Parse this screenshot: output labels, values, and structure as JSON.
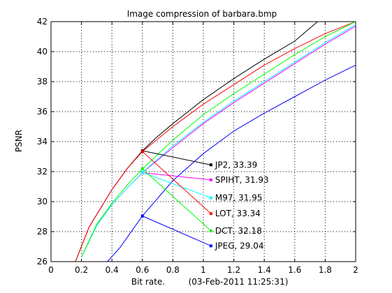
{
  "chart_data": {
    "type": "line",
    "title": "Image compression of barbara.bmp",
    "xlabel": "Bit rate.",
    "xlabel_note": "(03-Feb-2011 11:25:31)",
    "ylabel": "PSNR",
    "xlim": [
      0,
      2
    ],
    "ylim": [
      26,
      42
    ],
    "xticks": [
      0,
      0.2,
      0.4,
      0.6,
      0.8,
      1,
      1.2,
      1.4,
      1.6,
      1.8,
      2
    ],
    "xtick_labels": [
      "0",
      "0.2",
      "0.4",
      "0.6",
      "0.8",
      "1",
      "1.2",
      "1.4",
      "1.6",
      "1.8",
      "2"
    ],
    "yticks": [
      26,
      28,
      30,
      32,
      34,
      36,
      38,
      40,
      42
    ],
    "ytick_labels": [
      "26",
      "28",
      "30",
      "32",
      "34",
      "36",
      "38",
      "40",
      "42"
    ],
    "grid": true,
    "series": [
      {
        "name": "JP2",
        "color": "#000000",
        "x": [
          0.16,
          0.25,
          0.4,
          0.5,
          0.6,
          0.7,
          0.8,
          1.0,
          1.2,
          1.4,
          1.6,
          1.75
        ],
        "y": [
          26,
          28.3,
          30.8,
          32.2,
          33.39,
          34.35,
          35.2,
          36.8,
          38.2,
          39.5,
          40.7,
          42
        ]
      },
      {
        "name": "SPIHT",
        "color": "#ff00ff",
        "x": [
          0.2,
          0.3,
          0.4,
          0.5,
          0.6,
          0.8,
          1.0,
          1.2,
          1.4,
          1.6,
          1.8,
          2.0
        ],
        "y": [
          26.3,
          28.4,
          29.8,
          30.9,
          31.93,
          33.6,
          35.2,
          36.6,
          37.9,
          39.2,
          40.5,
          41.7
        ]
      },
      {
        "name": "M97",
        "color": "#00ffff",
        "x": [
          0.2,
          0.3,
          0.4,
          0.5,
          0.6,
          0.8,
          1.0,
          1.2,
          1.4,
          1.6,
          1.8,
          2.0
        ],
        "y": [
          26.3,
          28.4,
          29.8,
          30.9,
          31.95,
          33.7,
          35.3,
          36.7,
          38.0,
          39.3,
          40.6,
          41.8
        ]
      },
      {
        "name": "LOT",
        "color": "#ff0000",
        "x": [
          0.16,
          0.25,
          0.4,
          0.5,
          0.6,
          0.8,
          1.0,
          1.2,
          1.4,
          1.6,
          1.8,
          2.0
        ],
        "y": [
          26,
          28.3,
          30.8,
          32.2,
          33.34,
          35.0,
          36.5,
          37.8,
          39.1,
          40.2,
          41.2,
          42
        ]
      },
      {
        "name": "DCT",
        "color": "#00ff00",
        "x": [
          0.2,
          0.3,
          0.4,
          0.5,
          0.6,
          0.8,
          1.0,
          1.2,
          1.4,
          1.6,
          1.8,
          2.0
        ],
        "y": [
          26.3,
          28.5,
          29.9,
          31.1,
          32.18,
          34.1,
          35.8,
          37.2,
          38.5,
          39.8,
          41.0,
          42
        ]
      },
      {
        "name": "JPEG",
        "color": "#0000ff",
        "x": [
          0.37,
          0.45,
          0.6,
          0.8,
          1.0,
          1.2,
          1.4,
          1.6,
          1.8,
          2.0
        ],
        "y": [
          26,
          26.9,
          29.04,
          31.4,
          33.2,
          34.7,
          35.9,
          37.0,
          38.1,
          39.1
        ]
      }
    ],
    "annotations": [
      {
        "text": "JP2, 33.39",
        "color": "#000000",
        "from": [
          0.6,
          33.39
        ],
        "to": [
          1.05,
          32.45
        ]
      },
      {
        "text": "SPIHT, 31.93",
        "color": "#ff00ff",
        "from": [
          0.6,
          31.93
        ],
        "to": [
          1.05,
          31.45
        ]
      },
      {
        "text": "M97, 31.95",
        "color": "#00ffff",
        "from": [
          0.6,
          31.95
        ],
        "to": [
          1.05,
          30.25
        ]
      },
      {
        "text": "LOT, 33.34",
        "color": "#ff0000",
        "from": [
          0.6,
          33.34
        ],
        "to": [
          1.05,
          29.2
        ]
      },
      {
        "text": "DCT, 32.18",
        "color": "#00ff00",
        "from": [
          0.6,
          32.18
        ],
        "to": [
          1.05,
          28.05
        ]
      },
      {
        "text": "JPEG, 29.04",
        "color": "#0000ff",
        "from": [
          0.6,
          29.04
        ],
        "to": [
          1.05,
          27.05
        ]
      }
    ]
  }
}
